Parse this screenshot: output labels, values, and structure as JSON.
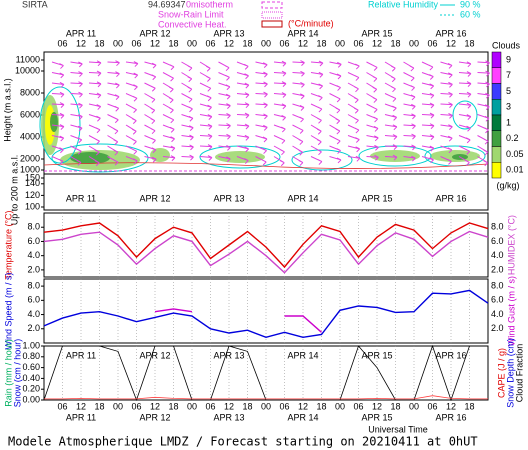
{
  "header": {
    "station": "SIRTA",
    "value": "94.69347",
    "isotherm": "0misotherm",
    "snow_rain": "Snow-Rain Limit",
    "convective": "Convective Heat.",
    "convective_unit": "(°C/minute)",
    "humidity": "Relative Humidity",
    "humidity_levels": [
      "90 %",
      "60 %"
    ]
  },
  "time_axis": {
    "xlim": [
      0,
      144
    ],
    "xticks": [
      {
        "value": 6,
        "label": "06"
      },
      12,
      18,
      {
        "value": 24,
        "label": "00"
      },
      {
        "value": 30,
        "label": "06"
      },
      {
        "value": 36,
        "label": "12"
      },
      {
        "value": 42,
        "label": "18"
      },
      {
        "value": 48,
        "label": "00"
      },
      {
        "value": 54,
        "label": "06"
      },
      {
        "value": 60,
        "label": "12"
      },
      {
        "value": 66,
        "label": "18"
      },
      {
        "value": 72,
        "label": "00"
      },
      {
        "value": 78,
        "label": "06"
      },
      {
        "value": 84,
        "label": "12"
      },
      {
        "value": 90,
        "label": "18"
      },
      {
        "value": 96,
        "label": "00"
      },
      {
        "value": 102,
        "label": "06"
      },
      {
        "value": 108,
        "label": "12"
      },
      {
        "value": 114,
        "label": "18"
      },
      {
        "value": 120,
        "label": "00"
      },
      {
        "value": 126,
        "label": "06"
      },
      {
        "value": 132,
        "label": "12"
      },
      {
        "value": 138,
        "label": "18"
      }
    ],
    "days": [
      {
        "value": 12,
        "label": "APR 11"
      },
      {
        "value": 36,
        "label": "APR 12"
      },
      {
        "value": 60,
        "label": "APR 13"
      },
      {
        "value": 84,
        "label": "APR 14"
      },
      {
        "value": 108,
        "label": "APR 15"
      },
      {
        "value": 132,
        "label": "APR 16"
      }
    ],
    "xlabel": "Universal Time"
  },
  "chart_data": [
    {
      "type": "contour",
      "ylabel": "Height (m a.s.l.)",
      "ylabel2": "Up to 200 m a.s.l.",
      "ylim": [
        1000,
        11000
      ],
      "yticks": [
        1000,
        2000,
        4000,
        6000,
        8000,
        10000,
        11000
      ],
      "y2lim": [
        100,
        150
      ],
      "y2ticks": [
        100,
        120,
        140,
        150
      ],
      "colorbar": {
        "title": "Clouds",
        "unit": "(g/kg)",
        "levels": [
          9,
          7,
          5,
          3,
          1,
          0.2,
          0.05,
          0.01
        ],
        "colors": [
          "#b000ff",
          "#ff40ff",
          "#3c3cff",
          "#00a0a0",
          "#007a3c",
          "#40a040",
          "#a0d870",
          "#ffff00"
        ]
      }
    },
    {
      "type": "line",
      "ylabel": "Temperature (°C)",
      "y2label": "HUMIDEX (°C)",
      "x": [
        0,
        6,
        12,
        18,
        24,
        30,
        36,
        42,
        48,
        54,
        60,
        66,
        72,
        78,
        84,
        90,
        96,
        102,
        108,
        114,
        120,
        126,
        132,
        138,
        144
      ],
      "ylim": [
        1,
        10
      ],
      "yticks": [
        {
          "value": 2,
          "label": "2.0"
        },
        {
          "value": 4,
          "label": "4.0"
        },
        {
          "value": 6,
          "label": "6.0"
        },
        {
          "value": 8,
          "label": "8.0"
        }
      ],
      "series": [
        {
          "color": "#e00000",
          "values": [
            7.3,
            7.6,
            8.2,
            8.6,
            6.8,
            3.8,
            6.4,
            8.0,
            7.2,
            3.6,
            5.5,
            7.4,
            5.2,
            2.4,
            5.6,
            8.2,
            7.4,
            3.8,
            6.6,
            8.4,
            7.6,
            5.0,
            7.2,
            8.6,
            7.8
          ]
        },
        {
          "color": "#cc44cc",
          "values": [
            6.0,
            6.3,
            7.0,
            7.3,
            5.5,
            2.8,
            5.0,
            6.8,
            6.0,
            2.6,
            4.2,
            6.0,
            4.0,
            1.6,
            4.4,
            7.0,
            6.2,
            2.8,
            5.4,
            7.2,
            6.3,
            3.9,
            6.0,
            7.4,
            6.6
          ]
        }
      ]
    },
    {
      "type": "line",
      "ylabel": "Wind Speed (m / s)",
      "y2label": "Wind Gust (m / s)",
      "x": [
        0,
        6,
        12,
        18,
        24,
        30,
        36,
        42,
        48,
        54,
        60,
        66,
        72,
        78,
        84,
        90,
        96,
        102,
        108,
        114,
        120,
        126,
        132,
        138,
        144
      ],
      "ylim": [
        0,
        9
      ],
      "yticks": [
        {
          "value": 2,
          "label": "2.0"
        },
        {
          "value": 4,
          "label": "4.0"
        },
        {
          "value": 6,
          "label": "6.0"
        },
        {
          "value": 8,
          "label": "8.0"
        }
      ],
      "series": [
        {
          "color": "#0000dd",
          "values": [
            2.4,
            3.5,
            4.2,
            4.4,
            3.8,
            3.0,
            3.6,
            4.2,
            3.8,
            2.0,
            1.4,
            1.8,
            0.8,
            1.5,
            0.8,
            1.2,
            4.6,
            5.2,
            5.0,
            4.3,
            4.4,
            7.0,
            6.9,
            7.4,
            5.6
          ]
        },
        {
          "color": "#cc00cc",
          "values": [
            null,
            null,
            null,
            null,
            null,
            null,
            4.4,
            4.8,
            4.4,
            null,
            null,
            null,
            null,
            3.8,
            3.8,
            1.5,
            null,
            null,
            null,
            null,
            null,
            null,
            null,
            null,
            null
          ]
        }
      ]
    },
    {
      "type": "line",
      "ylabel": "Rain (mm / hour)",
      "ylabel2": "Snow (cm / hour)",
      "y2label": "CAPE (J / g)",
      "y2label2": "Snow Depth (cm)",
      "y2label3": "Cloud Fraction",
      "x": [
        0,
        6,
        12,
        18,
        24,
        30,
        36,
        42,
        48,
        54,
        60,
        66,
        72,
        78,
        84,
        90,
        96,
        102,
        108,
        114,
        120,
        126,
        132,
        138,
        144
      ],
      "ylim": [
        0,
        1
      ],
      "yticks": [
        {
          "value": 0,
          "label": "0.00"
        },
        {
          "value": 0.2,
          "label": "0.20"
        },
        {
          "value": 0.4,
          "label": "0.40"
        },
        {
          "value": 0.6,
          "label": "0.60"
        },
        {
          "value": 0.8,
          "label": "0.80"
        },
        {
          "value": 1,
          "label": "1.00"
        }
      ],
      "series": [
        {
          "color": "#000000",
          "values": [
            0,
            1,
            1,
            1,
            0.9,
            0,
            1,
            1,
            0,
            0,
            1,
            0.9,
            0,
            0,
            0,
            0,
            0,
            1,
            0.6,
            0,
            0,
            1,
            0,
            1,
            1
          ]
        },
        {
          "color": "#ff4040",
          "values": [
            0.02,
            0.02,
            0.03,
            0.02,
            0.02,
            0.02,
            0.05,
            0.03,
            0.02,
            0.02,
            0.02,
            0.02,
            0.02,
            0.02,
            0.02,
            0.02,
            0.02,
            0.02,
            0.03,
            0.02,
            0.02,
            0.08,
            0.03,
            0.02,
            0.02
          ]
        }
      ]
    }
  ],
  "footer": "Modele Atmospherique LMDZ / Forecast starting on 20210411 at 0hUT"
}
